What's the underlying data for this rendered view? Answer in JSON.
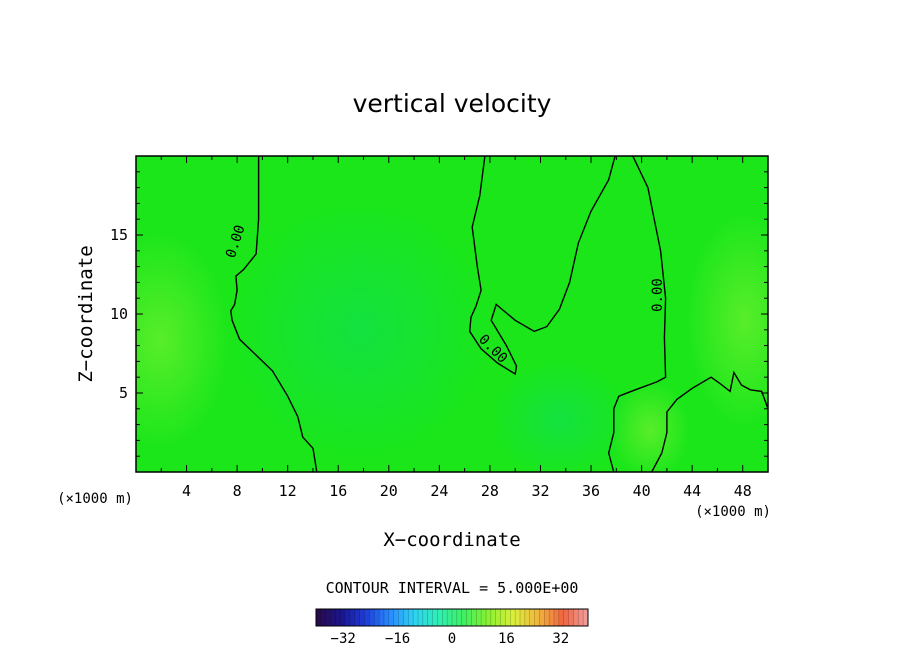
{
  "chart_data": {
    "type": "heatmap",
    "title": "vertical velocity",
    "xlabel": "X−coordinate",
    "ylabel": "Z−coordinate",
    "x_unit": "(×1000 m)",
    "x_unit_right": "(×1000 m)",
    "xlim": [
      0,
      50
    ],
    "ylim": [
      0,
      20
    ],
    "x_ticks": [
      {
        "value": 4,
        "label": "4"
      },
      {
        "value": 8,
        "label": "8"
      },
      {
        "value": 12,
        "label": "12"
      },
      {
        "value": 16,
        "label": "16"
      },
      {
        "value": 20,
        "label": "20"
      },
      {
        "value": 24,
        "label": "24"
      },
      {
        "value": 28,
        "label": "28"
      },
      {
        "value": 32,
        "label": "32"
      },
      {
        "value": 36,
        "label": "36"
      },
      {
        "value": 40,
        "label": "40"
      },
      {
        "value": 44,
        "label": "44"
      },
      {
        "value": 48,
        "label": "48"
      }
    ],
    "y_ticks": [
      {
        "value": 5,
        "label": "5"
      },
      {
        "value": 10,
        "label": "10"
      },
      {
        "value": 15,
        "label": "15"
      }
    ],
    "contour_interval_text": "CONTOUR INTERVAL = 5.000E+00",
    "contour_interval": 5.0,
    "zero_contour_label": "0.00",
    "zero_contours": [
      [
        [
          9.7,
          20
        ],
        [
          9.7,
          16
        ],
        [
          9.5,
          13.8
        ],
        [
          8.5,
          12.8
        ],
        [
          7.9,
          12.4
        ],
        [
          8.0,
          11.5
        ],
        [
          7.8,
          10.6
        ],
        [
          7.5,
          10.2
        ],
        [
          7.6,
          9.6
        ],
        [
          8.2,
          8.4
        ],
        [
          9.5,
          7.4
        ],
        [
          10.8,
          6.4
        ],
        [
          12.0,
          4.8
        ],
        [
          12.8,
          3.5
        ],
        [
          13.2,
          2.2
        ],
        [
          14.0,
          1.5
        ],
        [
          14.3,
          0
        ]
      ],
      [
        [
          27.6,
          20
        ],
        [
          27.2,
          17.5
        ],
        [
          26.6,
          15.5
        ],
        [
          27.0,
          13.0
        ],
        [
          27.3,
          11.5
        ],
        [
          26.9,
          10.5
        ],
        [
          26.5,
          9.8
        ],
        [
          26.4,
          8.9
        ],
        [
          27.3,
          7.8
        ],
        [
          28.6,
          6.9
        ],
        [
          30.0,
          6.2
        ],
        [
          30.1,
          6.7
        ],
        [
          29.3,
          8.0
        ],
        [
          28.1,
          9.6
        ],
        [
          28.5,
          10.6
        ],
        [
          30.0,
          9.6
        ],
        [
          31.5,
          8.9
        ],
        [
          32.5,
          9.2
        ],
        [
          33.5,
          10.3
        ],
        [
          34.3,
          12.0
        ],
        [
          35.0,
          14.5
        ],
        [
          36.0,
          16.5
        ],
        [
          37.4,
          18.5
        ],
        [
          37.9,
          20
        ]
      ],
      [
        [
          39.3,
          20
        ],
        [
          40.5,
          18.0
        ],
        [
          41.0,
          16.0
        ],
        [
          41.5,
          14.0
        ],
        [
          41.9,
          11.0
        ],
        [
          41.8,
          8.5
        ],
        [
          41.9,
          6.0
        ],
        [
          41.2,
          5.7
        ],
        [
          39.5,
          5.2
        ],
        [
          38.2,
          4.8
        ],
        [
          37.8,
          4.0
        ],
        [
          37.8,
          2.5
        ],
        [
          37.4,
          1.2
        ],
        [
          37.8,
          0
        ]
      ],
      [
        [
          40.8,
          0
        ],
        [
          41.6,
          1.2
        ],
        [
          42.0,
          2.5
        ],
        [
          42.0,
          3.8
        ],
        [
          42.8,
          4.6
        ],
        [
          44.0,
          5.3
        ],
        [
          45.5,
          6.0
        ],
        [
          46.2,
          5.6
        ],
        [
          47.0,
          5.1
        ],
        [
          47.3,
          6.3
        ],
        [
          47.9,
          5.5
        ],
        [
          48.6,
          5.2
        ],
        [
          49.5,
          5.1
        ],
        [
          50,
          4.0
        ]
      ]
    ],
    "zero_label_positions": [
      [
        8.2,
        14.5
      ],
      [
        28.0,
        7.6
      ],
      [
        41.6,
        11.2
      ]
    ],
    "colorbar": {
      "vmin": -40,
      "vmax": 40,
      "ticks": [
        {
          "value": -32,
          "label": "−32"
        },
        {
          "value": -16,
          "label": "−16"
        },
        {
          "value": 0,
          "label": "0"
        },
        {
          "value": 16,
          "label": "16"
        },
        {
          "value": 32,
          "label": "32"
        }
      ],
      "colors": [
        "#2a0a46",
        "#1a148c",
        "#1e3cd8",
        "#2a8cff",
        "#2ed4f0",
        "#30f0b0",
        "#40f060",
        "#8cf030",
        "#dcf03c",
        "#f0b43c",
        "#f06440",
        "#f0a0a0"
      ]
    },
    "field_base_color": "#1ae61a",
    "grid": false
  }
}
